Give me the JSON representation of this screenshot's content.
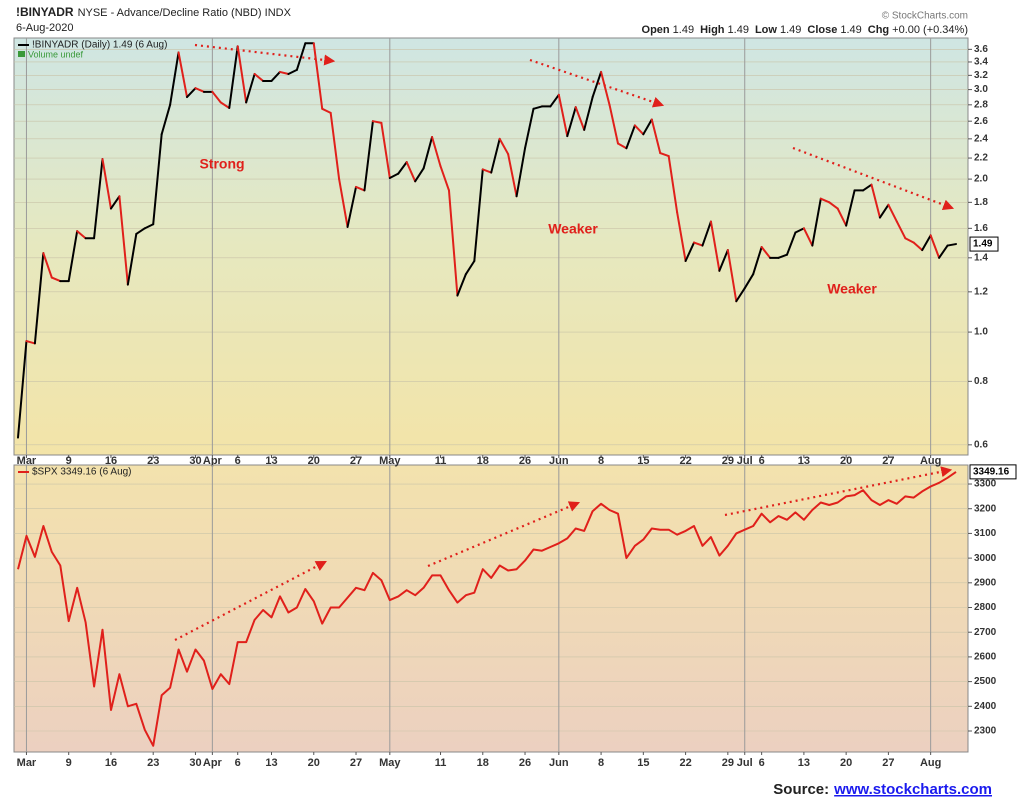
{
  "header": {
    "symbol": "!BINYADR",
    "description": "NYSE - Advance/Decline Ratio (NBD) INDX",
    "date": "6-Aug-2020",
    "copyright": "© StockCharts.com",
    "quote": [
      [
        "Open",
        "1.49"
      ],
      [
        "High",
        "1.49"
      ],
      [
        "Low",
        "1.49"
      ],
      [
        "Close",
        "1.49"
      ],
      [
        "Chg",
        "+0.00 (+0.34%)"
      ]
    ]
  },
  "footer": {
    "source_label": "Source:",
    "source_link": "www.stockcharts.com"
  },
  "chart_data": [
    {
      "type": "line",
      "log_scale": true,
      "grid": true,
      "legend_note": "Volume undef",
      "annotations": [
        "Strong",
        "Weaker",
        "Weaker"
      ],
      "categories": [
        null,
        "Mar",
        null,
        null,
        null,
        null,
        "9",
        null,
        null,
        null,
        null,
        "16",
        null,
        null,
        null,
        null,
        "23",
        null,
        null,
        null,
        null,
        "30",
        null,
        "Apr",
        null,
        null,
        "6",
        null,
        null,
        null,
        "13",
        null,
        null,
        null,
        null,
        "20",
        null,
        null,
        null,
        null,
        "27",
        null,
        null,
        null,
        "May",
        null,
        null,
        null,
        null,
        null,
        "11",
        null,
        null,
        null,
        null,
        "18",
        null,
        null,
        null,
        null,
        "26",
        null,
        null,
        null,
        "Jun",
        null,
        null,
        null,
        null,
        "8",
        null,
        null,
        null,
        null,
        "15",
        null,
        null,
        null,
        null,
        "22",
        null,
        null,
        null,
        null,
        "29",
        null,
        "Jul",
        null,
        "6",
        null,
        null,
        null,
        null,
        "13",
        null,
        null,
        null,
        null,
        "20",
        null,
        null,
        null,
        null,
        "27",
        null,
        null,
        null,
        null,
        "Aug",
        null,
        null,
        null
      ],
      "series": [
        {
          "name": "!BINYADR (Daily) 1.49 (6 Aug)",
          "up_color": "#000000",
          "down_color": "#e0201b",
          "values": [
            0.62,
            0.96,
            0.95,
            1.43,
            1.28,
            1.26,
            1.26,
            1.58,
            1.53,
            1.53,
            2.19,
            1.75,
            1.85,
            1.24,
            1.56,
            1.6,
            1.63,
            2.45,
            2.8,
            3.55,
            2.9,
            3.02,
            2.97,
            2.97,
            2.83,
            2.76,
            3.65,
            2.83,
            3.22,
            3.12,
            3.12,
            3.25,
            3.22,
            3.28,
            3.7,
            3.7,
            2.75,
            2.7,
            2.0,
            1.61,
            1.93,
            1.9,
            2.6,
            2.58,
            2.01,
            2.05,
            2.16,
            1.98,
            2.1,
            2.42,
            2.12,
            1.9,
            1.18,
            1.3,
            1.38,
            2.09,
            2.06,
            2.4,
            2.24,
            1.85,
            2.3,
            2.75,
            2.78,
            2.78,
            2.93,
            2.43,
            2.77,
            2.5,
            2.9,
            3.25,
            2.8,
            2.35,
            2.3,
            2.55,
            2.45,
            2.62,
            2.25,
            2.22,
            1.72,
            1.38,
            1.5,
            1.48,
            1.65,
            1.32,
            1.45,
            1.15,
            1.22,
            1.3,
            1.47,
            1.4,
            1.4,
            1.42,
            1.57,
            1.6,
            1.48,
            1.83,
            1.8,
            1.75,
            1.62,
            1.9,
            1.9,
            1.95,
            1.68,
            1.78,
            1.65,
            1.53,
            1.5,
            1.45,
            1.55,
            1.4,
            1.48,
            1.49
          ]
        }
      ],
      "ylim": [
        0.573,
        3.79
      ],
      "yticks": [
        0.6,
        0.8,
        {
          "value": 1,
          "label": "1.0"
        },
        1.2,
        1.4,
        1.6,
        1.8,
        {
          "value": 2,
          "label": "2.0"
        },
        2.2,
        2.4,
        2.6,
        2.8,
        {
          "value": 3,
          "label": "3.0"
        },
        3.2,
        3.4,
        3.6
      ]
    },
    {
      "type": "line",
      "log_scale": false,
      "grid": true,
      "categories": [
        null,
        "Mar",
        null,
        null,
        null,
        null,
        "9",
        null,
        null,
        null,
        null,
        "16",
        null,
        null,
        null,
        null,
        "23",
        null,
        null,
        null,
        null,
        "30",
        null,
        "Apr",
        null,
        null,
        "6",
        null,
        null,
        null,
        "13",
        null,
        null,
        null,
        null,
        "20",
        null,
        null,
        null,
        null,
        "27",
        null,
        null,
        null,
        "May",
        null,
        null,
        null,
        null,
        null,
        "11",
        null,
        null,
        null,
        null,
        "18",
        null,
        null,
        null,
        null,
        "26",
        null,
        null,
        null,
        "Jun",
        null,
        null,
        null,
        null,
        "8",
        null,
        null,
        null,
        null,
        "15",
        null,
        null,
        null,
        null,
        "22",
        null,
        null,
        null,
        null,
        "29",
        null,
        "Jul",
        null,
        "6",
        null,
        null,
        null,
        null,
        "13",
        null,
        null,
        null,
        null,
        "20",
        null,
        null,
        null,
        null,
        "27",
        null,
        null,
        null,
        null,
        "Aug",
        null,
        null,
        null
      ],
      "series": [
        {
          "name": "$SPX 3349.16 (6 Aug)",
          "color": "#e0201b",
          "values": [
            2955,
            3090,
            3005,
            3130,
            3025,
            2970,
            2745,
            2880,
            2740,
            2480,
            2710,
            2385,
            2530,
            2400,
            2410,
            2305,
            2240,
            2445,
            2475,
            2630,
            2540,
            2630,
            2585,
            2470,
            2530,
            2490,
            2660,
            2660,
            2750,
            2790,
            2760,
            2845,
            2780,
            2800,
            2875,
            2825,
            2735,
            2800,
            2800,
            2840,
            2880,
            2870,
            2940,
            2910,
            2830,
            2845,
            2870,
            2850,
            2880,
            2930,
            2930,
            2870,
            2820,
            2850,
            2860,
            2955,
            2920,
            2970,
            2950,
            2955,
            2990,
            3035,
            3030,
            3045,
            3060,
            3080,
            3120,
            3110,
            3190,
            3220,
            3195,
            3180,
            3000,
            3050,
            3075,
            3120,
            3115,
            3115,
            3095,
            3110,
            3130,
            3050,
            3085,
            3010,
            3050,
            3100,
            3115,
            3130,
            3180,
            3145,
            3170,
            3155,
            3185,
            3155,
            3195,
            3225,
            3215,
            3225,
            3250,
            3255,
            3275,
            3235,
            3215,
            3235,
            3220,
            3250,
            3245,
            3270,
            3290,
            3305,
            3325,
            3349.16
          ]
        }
      ],
      "ylim": [
        2215,
        3377
      ],
      "yticks": [
        2300,
        2400,
        2500,
        2600,
        2700,
        2800,
        2900,
        3000,
        3100,
        3200,
        3300
      ]
    }
  ]
}
